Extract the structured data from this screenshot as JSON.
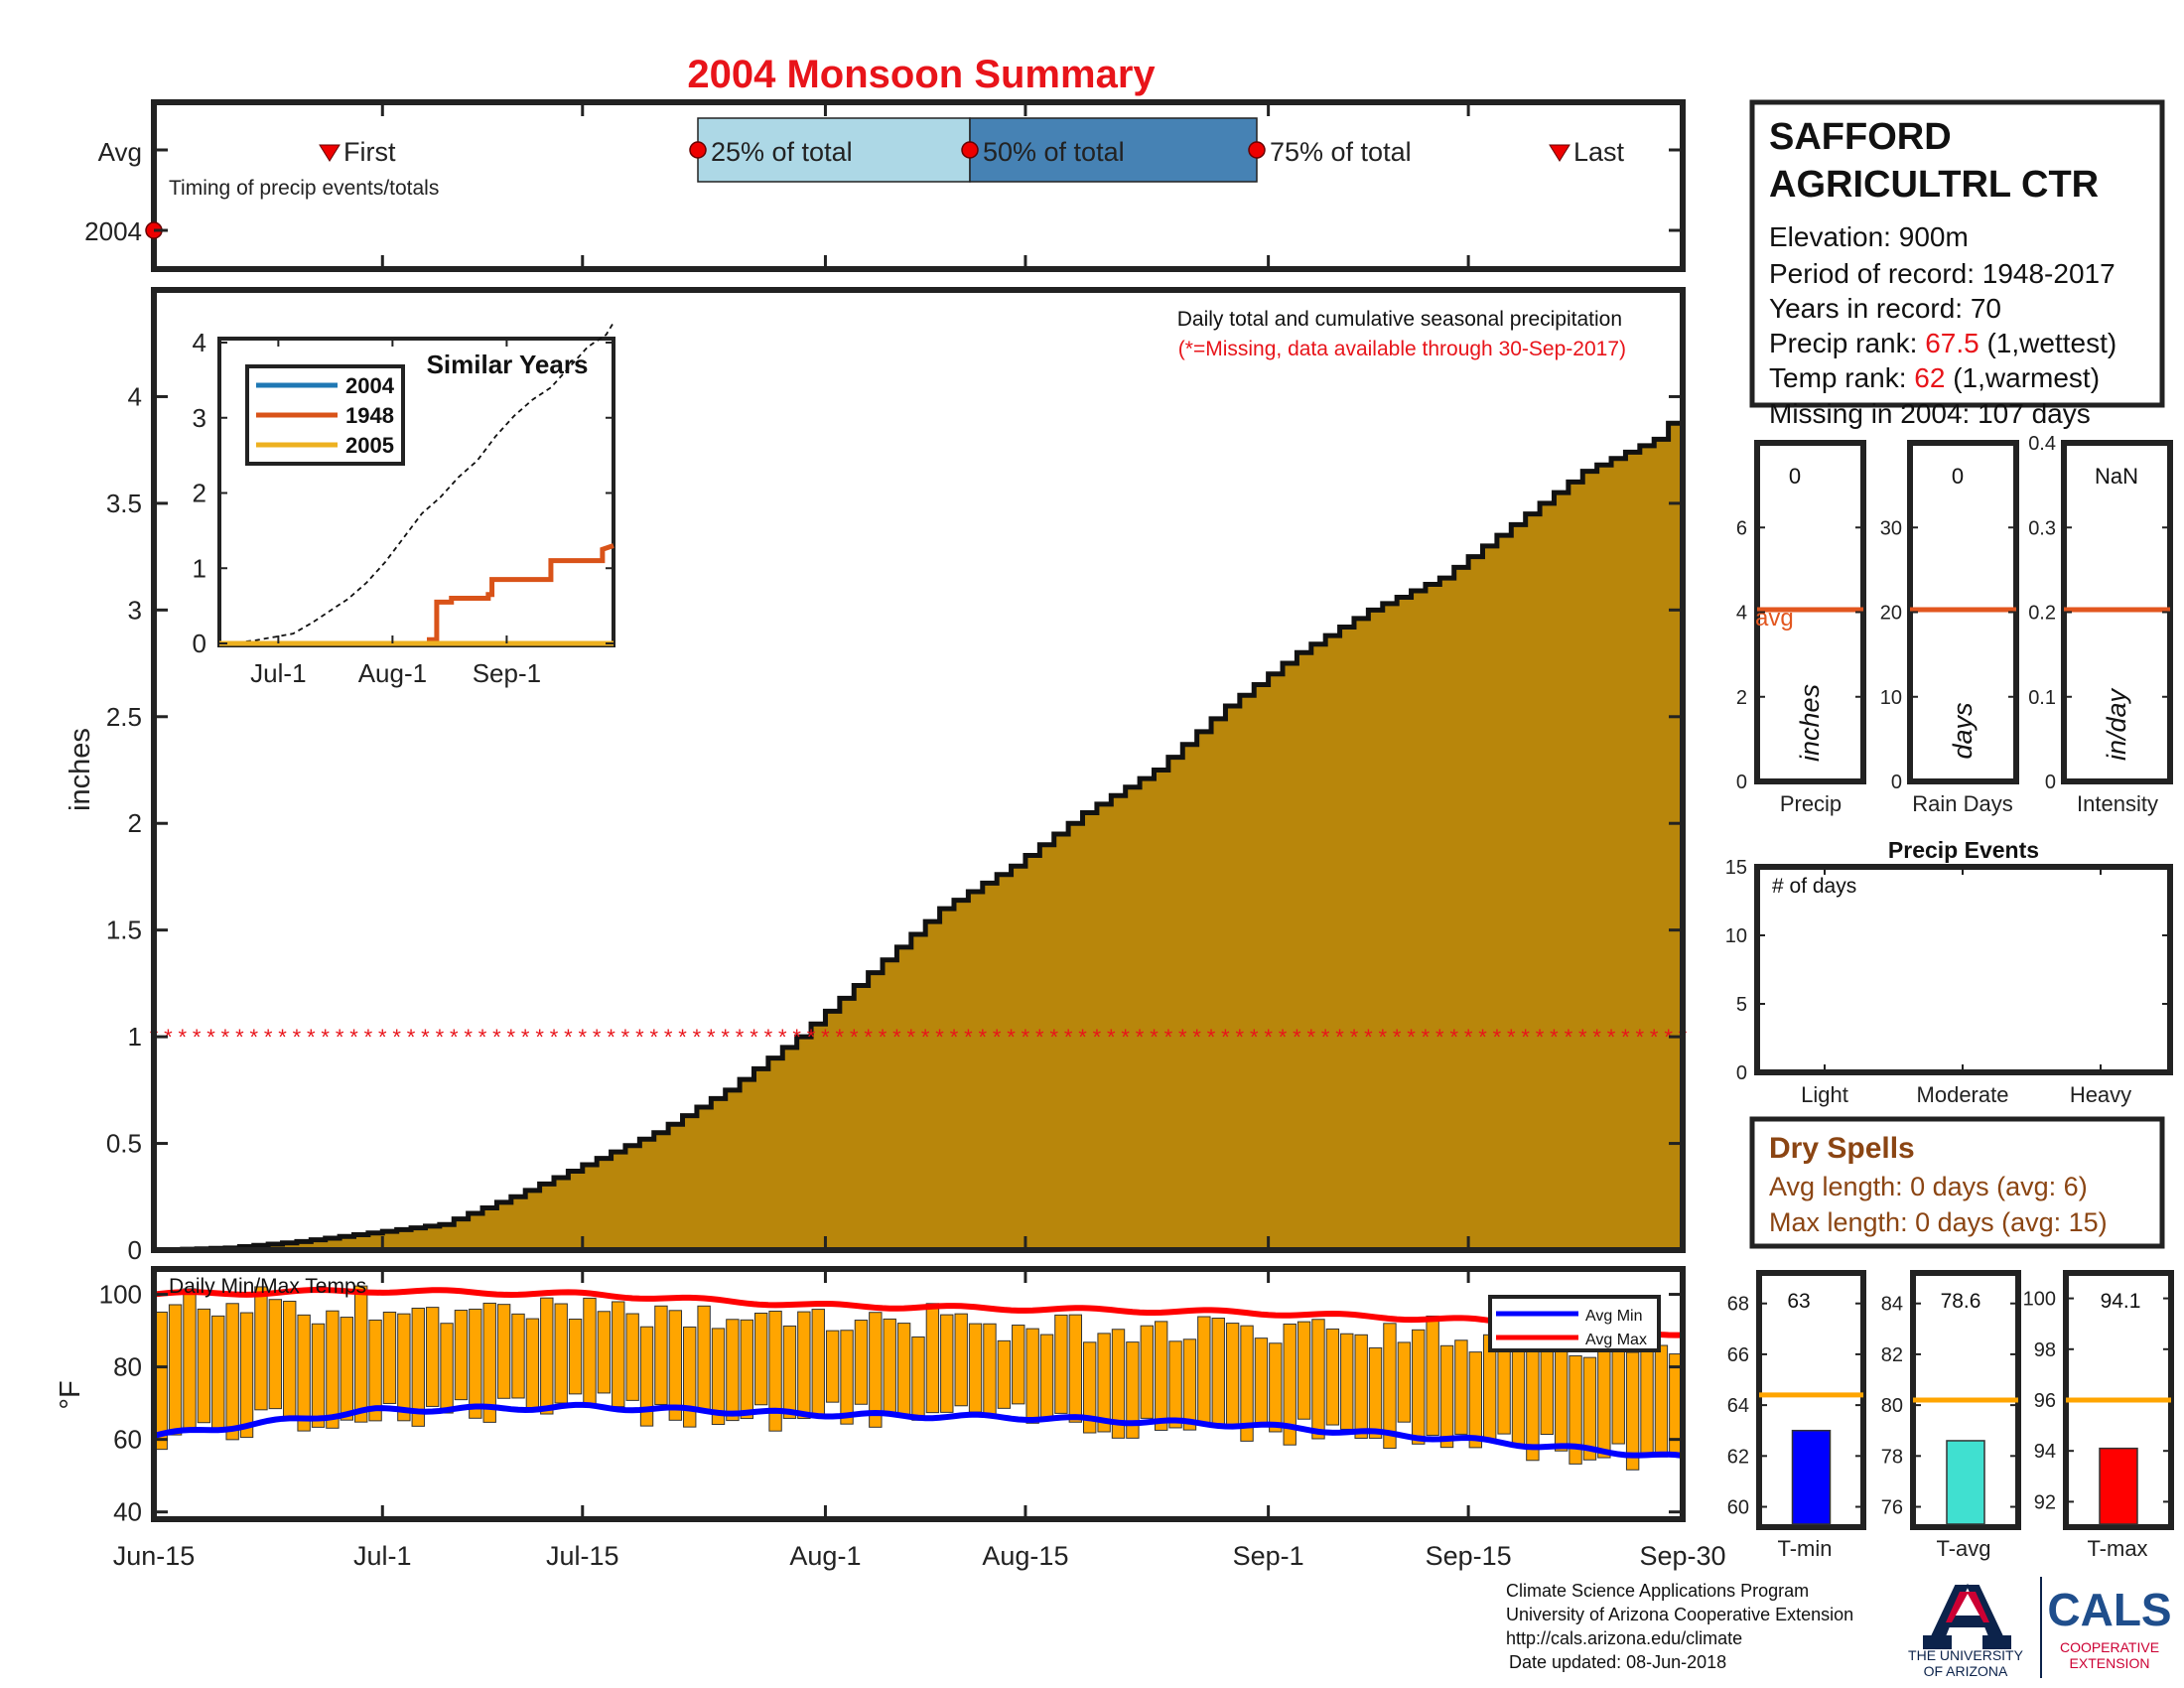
{
  "title": "2004 Monsoon Summary",
  "colors": {
    "title": "#e8141a",
    "fill": "#b8860b",
    "q1": "#add8e6",
    "q2": "#4682b4",
    "bar": "#ffa500",
    "avg_line": "#e2561f",
    "avg_min": "#0000ff",
    "avg_max": "#ff0000",
    "rank": "#e8141a",
    "dry": "#8b4513",
    "s2004": "#1f78b4",
    "s1948": "#d95319",
    "s2005": "#edb120"
  },
  "timing": {
    "avg_label": "Avg",
    "year_label": "2004",
    "first_label": "First",
    "last_label": "Last",
    "q25_label": "25% of total",
    "q50_label": "50% of total",
    "q75_label": "75% of total",
    "caption": "Timing of precip events/totals"
  },
  "main": {
    "note1": "Daily total and cumulative seasonal precipitation",
    "note2": "(*=Missing, data available through 30-Sep-2017)",
    "ylabel": "inches",
    "xticks": [
      "Jun-15",
      "Jul-1",
      "Jul-15",
      "Aug-1",
      "Aug-15",
      "Sep-1",
      "Sep-15",
      "Sep-30"
    ],
    "yticks": [
      "0",
      "0.5",
      "1",
      "1.5",
      "2",
      "2.5",
      "3",
      "3.5",
      "4"
    ]
  },
  "inset": {
    "title": "Similar Years",
    "legend": [
      "2004",
      "1948",
      "2005"
    ],
    "yticks": [
      "0",
      "1",
      "2",
      "3",
      "4"
    ],
    "xticks": [
      "Jul-1",
      "Aug-1",
      "Sep-1"
    ]
  },
  "temps": {
    "title": "Daily Min/Max Temps",
    "ylabel": "°F",
    "yticks": [
      "40",
      "60",
      "80",
      "100"
    ],
    "legend_min": "Avg Min",
    "legend_max": "Avg Max"
  },
  "station": {
    "name1": "SAFFORD",
    "name2": "AGRICULTRL CTR",
    "elevation": "Elevation: 900m",
    "period": "Period of record: 1948-2017",
    "years": "Years in record: 70",
    "precip_rank_label": "Precip rank:",
    "precip_rank_value": "67.5",
    "precip_rank_suffix": "(1,wettest)",
    "temp_rank_label": "Temp rank:",
    "temp_rank_value": "62",
    "temp_rank_suffix": "(1,warmest)",
    "missing": "Missing in 2004: 107 days"
  },
  "small_panels": {
    "precip": {
      "value": "0",
      "label": "Precip",
      "unit": "inches",
      "avg_label": "avg",
      "yticks": [
        "0",
        "2",
        "4",
        "6"
      ]
    },
    "raindays": {
      "value": "0",
      "label": "Rain Days",
      "unit": "days",
      "yticks": [
        "0",
        "10",
        "20",
        "30"
      ]
    },
    "intensity": {
      "value": "NaN",
      "label": "Intensity",
      "unit": "in/day",
      "yticks": [
        "0",
        "0.1",
        "0.2",
        "0.3",
        "0.4"
      ]
    }
  },
  "events": {
    "title": "Precip Events",
    "ylabel": "# of days",
    "yticks": [
      "0",
      "5",
      "10",
      "15"
    ],
    "categories": [
      "Light",
      "Moderate",
      "Heavy"
    ]
  },
  "dry_spells": {
    "title": "Dry Spells",
    "avg": "Avg length: 0 days (avg: 6)",
    "max": "Max length: 0 days (avg: 15)"
  },
  "temp_panels": {
    "tmin": {
      "value": "63",
      "label": "T-min",
      "yticks": [
        "60",
        "62",
        "64",
        "66",
        "68"
      ]
    },
    "tavg": {
      "value": "78.6",
      "label": "T-avg",
      "yticks": [
        "76",
        "78",
        "80",
        "82",
        "84"
      ]
    },
    "tmax": {
      "value": "94.1",
      "label": "T-max",
      "yticks": [
        "92",
        "94",
        "96",
        "98",
        "100"
      ]
    }
  },
  "footer": {
    "line1": "Climate Science Applications Program",
    "line2": "University of Arizona Cooperative Extension",
    "line3": "http://cals.arizona.edu/climate",
    "line4": "Date updated: 08-Jun-2018"
  },
  "logos": {
    "ua_line1": "THE UNIVERSITY",
    "ua_line2": "OF ARIZONA",
    "cals": "CALS",
    "cals_sub1": "COOPERATIVE",
    "cals_sub2": "EXTENSION"
  },
  "chart_data": [
    {
      "type": "area",
      "title": "Daily total and cumulative seasonal precipitation",
      "ylabel": "inches",
      "ylim": [
        0,
        4.5
      ],
      "x_range": [
        "Jun-15",
        "Sep-30"
      ],
      "series": [
        {
          "name": "",
          "x_days": [
            0,
            5,
            10,
            15,
            20,
            25,
            30,
            35,
            40,
            45,
            50,
            55,
            60,
            65,
            70,
            75,
            80,
            85,
            90,
            95,
            100,
            105,
            107
          ],
          "values": [
            0.0,
            0.01,
            0.04,
            0.08,
            0.12,
            0.25,
            0.4,
            0.55,
            0.75,
            1.0,
            1.3,
            1.6,
            1.8,
            2.05,
            2.25,
            2.55,
            2.8,
            3.0,
            3.15,
            3.4,
            3.65,
            3.8,
            3.95
          ]
        }
      ],
      "missing_marker_value": 1
    },
    {
      "type": "line",
      "title": "Similar Years",
      "ylim": [
        0,
        4
      ],
      "series": [
        {
          "name": "2004",
          "values": [
            0,
            0,
            0,
            0
          ]
        },
        {
          "name": "1948",
          "values": [
            0,
            0.55,
            0.85,
            1.1,
            1.3
          ]
        },
        {
          "name": "2005",
          "values": [
            0,
            0,
            0,
            0
          ]
        }
      ]
    },
    {
      "type": "bar",
      "title": "Daily Min/Max Temps",
      "ylabel": "°F",
      "ylim": [
        38,
        107
      ],
      "avg_min": [
        61,
        68,
        69,
        67,
        66,
        64,
        60,
        55
      ],
      "avg_max": [
        100,
        101,
        100,
        97,
        96,
        95,
        93,
        89
      ]
    },
    {
      "type": "bar",
      "title": "Precip Events",
      "categories": [
        "Light",
        "Moderate",
        "Heavy"
      ],
      "values": [
        0,
        0,
        0
      ],
      "ylim": [
        0,
        15
      ]
    },
    {
      "type": "bar",
      "categories": [
        "T-min",
        "T-avg",
        "T-max"
      ],
      "values": [
        63,
        78.6,
        94.1
      ],
      "avg": [
        64.4,
        80.2,
        96
      ]
    }
  ]
}
